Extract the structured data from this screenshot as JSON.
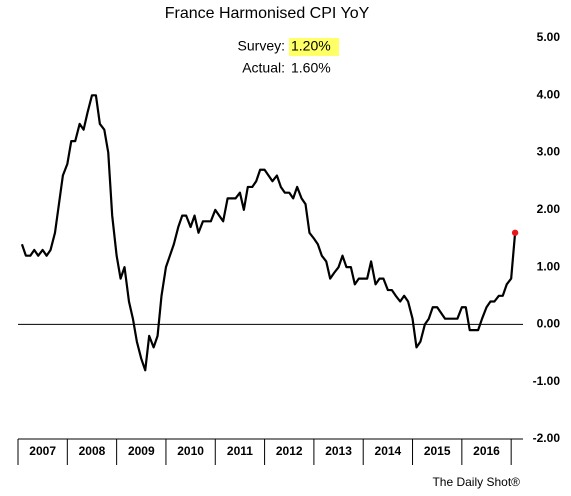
{
  "chart_data": {
    "type": "line",
    "title": "France Harmonised CPI YoY",
    "annotations": {
      "survey_label": "Survey:",
      "survey_value": "1.20%",
      "actual_label": "Actual:",
      "actual_value": "1.60%"
    },
    "source": "The Daily Shot®",
    "categories": [
      "2007",
      "2008",
      "2009",
      "2010",
      "2011",
      "2012",
      "2013",
      "2014",
      "2015",
      "2016"
    ],
    "x": [
      2007.0,
      2007.08,
      2007.17,
      2007.25,
      2007.33,
      2007.42,
      2007.5,
      2007.58,
      2007.67,
      2007.75,
      2007.83,
      2007.92,
      2008.0,
      2008.08,
      2008.17,
      2008.25,
      2008.33,
      2008.42,
      2008.5,
      2008.58,
      2008.67,
      2008.75,
      2008.83,
      2008.92,
      2009.0,
      2009.08,
      2009.17,
      2009.25,
      2009.33,
      2009.42,
      2009.5,
      2009.58,
      2009.67,
      2009.75,
      2009.83,
      2009.92,
      2010.0,
      2010.08,
      2010.17,
      2010.25,
      2010.33,
      2010.42,
      2010.5,
      2010.58,
      2010.67,
      2010.75,
      2010.83,
      2010.92,
      2011.0,
      2011.08,
      2011.17,
      2011.25,
      2011.33,
      2011.42,
      2011.5,
      2011.58,
      2011.67,
      2011.75,
      2011.83,
      2011.92,
      2012.0,
      2012.08,
      2012.17,
      2012.25,
      2012.33,
      2012.42,
      2012.5,
      2012.58,
      2012.67,
      2012.75,
      2012.83,
      2012.92,
      2013.0,
      2013.08,
      2013.17,
      2013.25,
      2013.33,
      2013.42,
      2013.5,
      2013.58,
      2013.67,
      2013.75,
      2013.83,
      2013.92,
      2014.0,
      2014.08,
      2014.17,
      2014.25,
      2014.33,
      2014.42,
      2014.5,
      2014.58,
      2014.67,
      2014.75,
      2014.83,
      2014.92,
      2015.0,
      2015.08,
      2015.17,
      2015.25,
      2015.33,
      2015.42,
      2015.5,
      2015.58,
      2015.67,
      2015.75,
      2015.83,
      2015.92,
      2016.0,
      2016.08,
      2016.17,
      2016.25,
      2016.33,
      2016.42,
      2016.5,
      2016.58,
      2016.67,
      2016.75,
      2016.83,
      2016.92,
      2017.0
    ],
    "series": [
      {
        "name": "France Harmonised CPI YoY",
        "color": "#000000",
        "values": [
          1.4,
          1.2,
          1.2,
          1.3,
          1.2,
          1.3,
          1.2,
          1.3,
          1.6,
          2.1,
          2.6,
          2.8,
          3.2,
          3.2,
          3.5,
          3.4,
          3.7,
          4.0,
          4.0,
          3.5,
          3.4,
          3.0,
          1.9,
          1.2,
          0.8,
          1.0,
          0.4,
          0.1,
          -0.3,
          -0.6,
          -0.8,
          -0.2,
          -0.4,
          -0.2,
          0.5,
          1.0,
          1.2,
          1.4,
          1.7,
          1.9,
          1.9,
          1.7,
          1.9,
          1.6,
          1.8,
          1.8,
          1.8,
          2.0,
          1.9,
          1.8,
          2.2,
          2.2,
          2.2,
          2.3,
          2.0,
          2.4,
          2.4,
          2.5,
          2.7,
          2.7,
          2.6,
          2.5,
          2.6,
          2.4,
          2.3,
          2.3,
          2.2,
          2.4,
          2.2,
          2.1,
          1.6,
          1.5,
          1.4,
          1.2,
          1.1,
          0.8,
          0.9,
          1.0,
          1.2,
          1.0,
          1.0,
          0.7,
          0.8,
          0.8,
          0.8,
          1.1,
          0.7,
          0.8,
          0.8,
          0.6,
          0.6,
          0.5,
          0.4,
          0.5,
          0.4,
          0.1,
          -0.4,
          -0.3,
          0.0,
          0.1,
          0.3,
          0.3,
          0.2,
          0.1,
          0.1,
          0.1,
          0.1,
          0.3,
          0.3,
          -0.1,
          -0.1,
          -0.1,
          0.1,
          0.3,
          0.4,
          0.4,
          0.5,
          0.5,
          0.7,
          0.8,
          1.6
        ]
      }
    ],
    "last_point_color": "#e8151b",
    "highlight_color": "#ffff66",
    "xlim": [
      2006.92,
      2017.16
    ],
    "ylim": [
      -2,
      5
    ],
    "yticks": [
      {
        "value": 5,
        "label": "5.00"
      },
      {
        "value": 4,
        "label": "4.00"
      },
      {
        "value": 3,
        "label": "3.00"
      },
      {
        "value": 2,
        "label": "2.00"
      },
      {
        "value": 1,
        "label": "1.00"
      },
      {
        "value": 0,
        "label": "0.00"
      },
      {
        "value": -1,
        "label": "-1.00"
      },
      {
        "value": -2,
        "label": "-2.00"
      }
    ],
    "grid": false
  }
}
